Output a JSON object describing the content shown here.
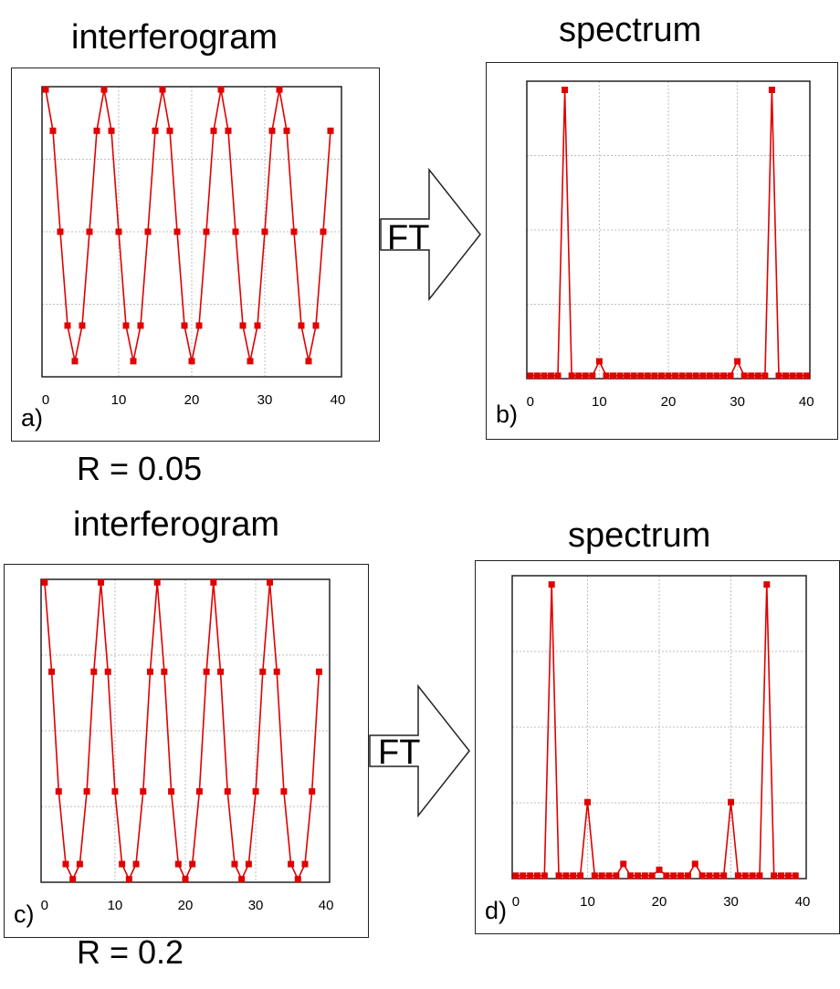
{
  "titles": {
    "a": "interferogram",
    "b": "spectrum",
    "c": "interferogram",
    "d": "spectrum"
  },
  "panel_letters": {
    "a": "a)",
    "b": "b)",
    "c": "c)",
    "d": "d)"
  },
  "r_labels": {
    "top": "R = 0.05",
    "bottom": "R = 0.2"
  },
  "arrow_label": "FT",
  "colors": {
    "series": "#e00000",
    "grid": "#bdbdbd",
    "frame": "#222222",
    "text": "#000000"
  },
  "chart_data": [
    {
      "id": "a",
      "type": "line",
      "x_ticks": [
        0,
        10,
        20,
        30,
        40
      ],
      "xlim": [
        -0.5,
        40.5
      ],
      "ylim": [
        -1.02,
        1.02
      ],
      "grid": true,
      "x": [
        0,
        1,
        2,
        3,
        4,
        5,
        6,
        7,
        8,
        9,
        10,
        11,
        12,
        13,
        14,
        15,
        16,
        17,
        18,
        19,
        20,
        21,
        22,
        23,
        24,
        25,
        26,
        27,
        28,
        29,
        30,
        31,
        32,
        33,
        34,
        35,
        36,
        37,
        38,
        39
      ],
      "y": [
        1.0,
        0.71,
        0.0,
        -0.66,
        -0.91,
        -0.66,
        0.0,
        0.71,
        1.0,
        0.71,
        0.0,
        -0.66,
        -0.91,
        -0.66,
        0.0,
        0.71,
        1.0,
        0.71,
        0.0,
        -0.66,
        -0.91,
        -0.66,
        0.0,
        0.71,
        1.0,
        0.71,
        0.0,
        -0.66,
        -0.91,
        -0.66,
        0.0,
        0.71,
        1.0,
        0.71,
        0.0,
        -0.66,
        -0.91,
        -0.66,
        0.0,
        0.71
      ]
    },
    {
      "id": "b",
      "type": "line",
      "x_ticks": [
        0,
        10,
        20,
        30,
        40
      ],
      "xlim": [
        -0.5,
        40.5
      ],
      "ylim": [
        0,
        1.03
      ],
      "grid": true,
      "x": [
        0,
        1,
        2,
        3,
        4,
        5,
        6,
        7,
        8,
        9,
        10,
        11,
        12,
        13,
        14,
        15,
        16,
        17,
        18,
        19,
        20,
        21,
        22,
        23,
        24,
        25,
        26,
        27,
        28,
        29,
        30,
        31,
        32,
        33,
        34,
        35,
        36,
        37,
        38,
        39,
        40
      ],
      "y": [
        0.01,
        0.01,
        0.01,
        0.01,
        0.01,
        1.0,
        0.01,
        0.01,
        0.01,
        0.01,
        0.06,
        0.01,
        0.01,
        0.01,
        0.01,
        0.01,
        0.01,
        0.01,
        0.01,
        0.01,
        0.01,
        0.01,
        0.01,
        0.01,
        0.01,
        0.01,
        0.01,
        0.01,
        0.01,
        0.01,
        0.06,
        0.01,
        0.01,
        0.01,
        0.01,
        1.0,
        0.01,
        0.01,
        0.01,
        0.01,
        0.01
      ]
    },
    {
      "id": "c",
      "type": "line",
      "x_ticks": [
        0,
        10,
        20,
        30,
        40
      ],
      "xlim": [
        -0.5,
        40.5
      ],
      "ylim": [
        -0.98,
        1.02
      ],
      "grid": true,
      "x": [
        0,
        1,
        2,
        3,
        4,
        5,
        6,
        7,
        8,
        9,
        10,
        11,
        12,
        13,
        14,
        15,
        16,
        17,
        18,
        19,
        20,
        21,
        22,
        23,
        24,
        25,
        26,
        27,
        28,
        29,
        30,
        31,
        32,
        33,
        34,
        35,
        36,
        37,
        38,
        39
      ],
      "y": [
        1.0,
        0.41,
        -0.38,
        -0.86,
        -0.96,
        -0.86,
        -0.38,
        0.41,
        1.0,
        0.41,
        -0.38,
        -0.86,
        -0.96,
        -0.86,
        -0.38,
        0.41,
        1.0,
        0.41,
        -0.38,
        -0.86,
        -0.96,
        -0.86,
        -0.38,
        0.41,
        1.0,
        0.41,
        -0.38,
        -0.86,
        -0.96,
        -0.86,
        -0.38,
        0.41,
        1.0,
        0.41,
        -0.38,
        -0.86,
        -0.96,
        -0.86,
        -0.38,
        0.41
      ]
    },
    {
      "id": "d",
      "type": "line",
      "x_ticks": [
        0,
        10,
        20,
        30,
        40
      ],
      "xlim": [
        -0.5,
        40.5
      ],
      "ylim": [
        0,
        1.03
      ],
      "grid": true,
      "x": [
        0,
        1,
        2,
        3,
        4,
        5,
        6,
        7,
        8,
        9,
        10,
        11,
        12,
        13,
        14,
        15,
        16,
        17,
        18,
        19,
        20,
        21,
        22,
        23,
        24,
        25,
        26,
        27,
        28,
        29,
        30,
        31,
        32,
        33,
        34,
        35,
        36,
        37,
        38,
        39
      ],
      "y": [
        0.01,
        0.01,
        0.01,
        0.01,
        0.01,
        1.0,
        0.01,
        0.01,
        0.01,
        0.01,
        0.26,
        0.01,
        0.01,
        0.01,
        0.01,
        0.05,
        0.01,
        0.01,
        0.01,
        0.01,
        0.03,
        0.01,
        0.01,
        0.01,
        0.01,
        0.05,
        0.01,
        0.01,
        0.01,
        0.01,
        0.26,
        0.01,
        0.01,
        0.01,
        0.01,
        1.0,
        0.01,
        0.01,
        0.01,
        0.01
      ]
    }
  ]
}
